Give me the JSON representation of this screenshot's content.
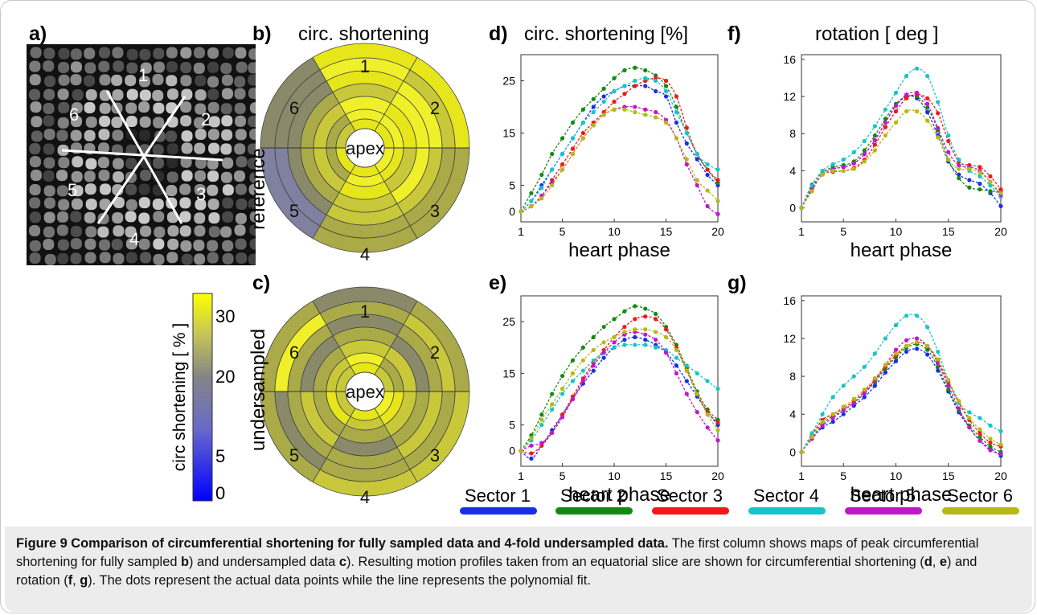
{
  "figure": {
    "panels": {
      "a": "a)",
      "b": "b)",
      "c": "c)",
      "d": "d)",
      "e": "e)",
      "f": "f)",
      "g": "g)"
    },
    "mri": {
      "sector_labels": [
        "1",
        "2",
        "3",
        "4",
        "5",
        "6"
      ]
    },
    "bullseye": {
      "title": "circ. shortening",
      "center_label": "apex",
      "sector_labels": [
        "1",
        "2",
        "3",
        "4",
        "5",
        "6"
      ],
      "reference_label": "reference",
      "undersampled_label": "undersampled"
    },
    "colorbar": {
      "label": "circ shortening [ % ]",
      "ticks": [
        "0",
        "5",
        "20",
        "30"
      ],
      "colors": {
        "low": "#0000ff",
        "mid": "#808080",
        "high": "#ffff00"
      }
    },
    "legend": {
      "entries": [
        {
          "name": "Sector 1",
          "color": "#1a2ee6"
        },
        {
          "name": "Sector 2",
          "color": "#128a12"
        },
        {
          "name": "Sector 3",
          "color": "#f01818"
        },
        {
          "name": "Sector 4",
          "color": "#18c4c8"
        },
        {
          "name": "Sector 5",
          "color": "#c018c8"
        },
        {
          "name": "Sector 6",
          "color": "#b8b814"
        }
      ]
    },
    "caption": {
      "bold": "Figure 9 Comparison of circumferential shortening for fully sampled data and 4-fold undersampled data.",
      "text_1": " The first column shows maps of peak circumferential shortening for fully sampled ",
      "b": "b",
      "text_2": ") and undersampled data ",
      "c": "c",
      "text_3": "). Resulting motion profiles taken from an equatorial slice are shown for circumferential shortening (",
      "d": "d",
      "comma_1": ", ",
      "e": "e",
      "text_4": ") and rotation (",
      "f": "f",
      "comma_2": ", ",
      "g": "g",
      "text_5": "). The dots represent the actual data points while the line represents the polynomial fit."
    }
  },
  "chart_data": [
    {
      "id": "d",
      "type": "line",
      "title": "circ. shortening [%]",
      "xlabel": "heart phase",
      "ylabel": "",
      "xlim": [
        1,
        20
      ],
      "ylim": [
        -2,
        30
      ],
      "xticks": [
        1,
        5,
        10,
        15,
        20
      ],
      "yticks": [
        0,
        5,
        15,
        25
      ],
      "x": [
        1,
        2,
        3,
        4,
        5,
        6,
        7,
        8,
        9,
        10,
        11,
        12,
        13,
        14,
        15,
        16,
        17,
        18,
        19,
        20
      ],
      "series": [
        {
          "name": "Sector 1",
          "values": [
            0,
            2,
            5,
            8,
            11,
            14,
            17,
            20,
            22,
            23,
            24,
            24,
            24,
            23,
            22,
            17,
            13,
            10,
            7,
            5
          ]
        },
        {
          "name": "Sector 2",
          "values": [
            0,
            3.5,
            7,
            11,
            14,
            17,
            19.5,
            21.5,
            23.5,
            25.5,
            27,
            27.5,
            27,
            26,
            24,
            20,
            15,
            11,
            8,
            5.5
          ]
        },
        {
          "name": "Sector 3",
          "values": [
            0,
            1,
            3,
            6,
            9,
            12,
            15,
            17,
            19,
            21,
            22.5,
            24,
            25,
            25.5,
            25,
            22,
            16,
            11,
            8,
            6
          ]
        },
        {
          "name": "Sector 4",
          "values": [
            0,
            2,
            4.5,
            8,
            11,
            14,
            17,
            19,
            21,
            23,
            24,
            25,
            25.5,
            25,
            23,
            19,
            15,
            11,
            9,
            8
          ]
        },
        {
          "name": "Sector 5",
          "values": [
            0,
            1,
            3,
            5.5,
            8,
            11,
            14,
            16.5,
            18.5,
            19.5,
            20,
            20,
            19.5,
            19,
            17.5,
            14,
            9,
            5,
            1,
            -0.5
          ]
        },
        {
          "name": "Sector 6",
          "values": [
            0,
            1,
            2.5,
            5,
            8,
            11,
            14,
            16.5,
            18.5,
            19.5,
            19.5,
            19,
            18.5,
            18,
            17,
            14,
            10,
            6,
            4,
            2
          ]
        }
      ]
    },
    {
      "id": "e",
      "type": "line",
      "title": "",
      "xlabel": "heart phase",
      "ylabel": "",
      "xlim": [
        1,
        20
      ],
      "ylim": [
        -3,
        30
      ],
      "xticks": [
        1,
        5,
        10,
        15,
        20
      ],
      "yticks": [
        0,
        5,
        15,
        25
      ],
      "x": [
        1,
        2,
        3,
        4,
        5,
        6,
        7,
        8,
        9,
        10,
        11,
        12,
        13,
        14,
        15,
        16,
        17,
        18,
        19,
        20
      ],
      "series": [
        {
          "name": "Sector 1",
          "values": [
            0,
            -1.5,
            1,
            4,
            7,
            10,
            13,
            15.5,
            18,
            20,
            21.5,
            22,
            21.5,
            20.5,
            19,
            16.5,
            13.5,
            10.5,
            7.5,
            5
          ]
        },
        {
          "name": "Sector 2",
          "values": [
            0,
            3,
            7,
            11,
            14.5,
            17.5,
            20,
            22,
            24,
            25.5,
            27,
            28,
            27.5,
            26.5,
            24,
            20.5,
            16,
            11.5,
            8,
            6
          ]
        },
        {
          "name": "Sector 3",
          "values": [
            0,
            -0.5,
            1,
            3.5,
            7,
            10.5,
            14,
            17,
            19.5,
            22,
            24,
            25.5,
            26,
            25.5,
            23.5,
            20,
            15.5,
            11,
            7.5,
            5.5
          ]
        },
        {
          "name": "Sector 4",
          "values": [
            0,
            2,
            5,
            8,
            11,
            13.5,
            15.5,
            17.5,
            19,
            20,
            20.5,
            20.5,
            20.5,
            20,
            19.5,
            18,
            16.5,
            15,
            13.5,
            12
          ]
        },
        {
          "name": "Sector 5",
          "values": [
            0,
            1,
            1.5,
            3.5,
            6.5,
            10,
            13.5,
            16.5,
            19,
            21,
            22.5,
            23,
            22.5,
            21.5,
            19,
            15,
            11,
            7.5,
            4.5,
            2
          ]
        },
        {
          "name": "Sector 6",
          "values": [
            0,
            2.5,
            6,
            9,
            12,
            15,
            17.5,
            19.5,
            21,
            22,
            23,
            23.5,
            23.5,
            23,
            22,
            19.5,
            15.5,
            11,
            7,
            4
          ]
        }
      ]
    },
    {
      "id": "f",
      "type": "line",
      "title": "rotation [ deg ]",
      "xlabel": "heart phase",
      "ylabel": "",
      "xlim": [
        1,
        20
      ],
      "ylim": [
        -1.5,
        16.5
      ],
      "xticks": [
        1,
        5,
        10,
        15,
        20
      ],
      "yticks": [
        0,
        4,
        8,
        12,
        16
      ],
      "x": [
        1,
        2,
        3,
        4,
        5,
        6,
        7,
        8,
        9,
        10,
        11,
        12,
        13,
        14,
        15,
        16,
        17,
        18,
        19,
        20
      ],
      "series": [
        {
          "name": "Sector 1",
          "values": [
            0,
            2.2,
            3.6,
            4.2,
            4.4,
            4.8,
            5.8,
            7.3,
            9.2,
            11,
            12,
            11.8,
            10.3,
            7.8,
            5,
            3.6,
            3,
            2.6,
            1.6,
            0.2
          ]
        },
        {
          "name": "Sector 2",
          "values": [
            0,
            2.5,
            3.8,
            4.4,
            4.6,
            5,
            6.2,
            7.8,
            9.6,
            11.2,
            12,
            12,
            10.8,
            8.4,
            5.2,
            3.2,
            2.2,
            2,
            1.8,
            1.8
          ]
        },
        {
          "name": "Sector 3",
          "values": [
            0,
            2,
            3.6,
            3.9,
            4,
            4.3,
            5.2,
            6.8,
            8.7,
            10.4,
            11.8,
            12.2,
            11.8,
            10.2,
            7.2,
            5,
            4.6,
            4.4,
            3.4,
            2
          ]
        },
        {
          "name": "Sector 4",
          "values": [
            0,
            2.4,
            4,
            4.7,
            5.2,
            6,
            7.2,
            8.8,
            10.6,
            12.4,
            14.2,
            15,
            14.2,
            11.4,
            7.8,
            5.2,
            4,
            3.4,
            2.4,
            1.2
          ]
        },
        {
          "name": "Sector 5",
          "values": [
            0,
            2,
            3.6,
            4.2,
            4.4,
            4.8,
            5.8,
            7.3,
            9.2,
            11,
            12.2,
            12.4,
            11.2,
            8.6,
            6,
            4.6,
            4.4,
            4,
            2.8,
            1.4
          ]
        },
        {
          "name": "Sector 6",
          "values": [
            0,
            1.8,
            3.6,
            4,
            4,
            4.2,
            5,
            6.2,
            7.8,
            9.2,
            10.4,
            10.4,
            9.4,
            7.6,
            5.2,
            4.2,
            4.2,
            3.8,
            2.8,
            1.6
          ]
        }
      ]
    },
    {
      "id": "g",
      "type": "line",
      "title": "",
      "xlabel": "heart phase",
      "ylabel": "",
      "xlim": [
        1,
        20
      ],
      "ylim": [
        -1.5,
        16.5
      ],
      "xticks": [
        1,
        5,
        10,
        15,
        20
      ],
      "yticks": [
        0,
        4,
        8,
        12,
        16
      ],
      "x": [
        1,
        2,
        3,
        4,
        5,
        6,
        7,
        8,
        9,
        10,
        11,
        12,
        13,
        14,
        15,
        16,
        17,
        18,
        19,
        20
      ],
      "series": [
        {
          "name": "Sector 1",
          "values": [
            0,
            1.4,
            2.6,
            3.2,
            4,
            4.9,
            5.8,
            7,
            8.4,
            9.6,
            10.6,
            10.9,
            10.3,
            8.6,
            6.4,
            4.2,
            2.6,
            1.2,
            0.4,
            -0.4
          ]
        },
        {
          "name": "Sector 2",
          "values": [
            0,
            1.6,
            3,
            3.8,
            4.4,
            5.2,
            6.2,
            7.4,
            8.8,
            10,
            11,
            11.4,
            10.8,
            9,
            6.6,
            4.4,
            2.8,
            1.6,
            0.6,
            0
          ]
        },
        {
          "name": "Sector 3",
          "values": [
            0,
            1.8,
            3.4,
            4,
            4.6,
            5.4,
            6.4,
            7.6,
            9,
            10.2,
            11.2,
            11.6,
            11.2,
            9.6,
            7.4,
            5.2,
            3.4,
            2,
            1,
            0.6
          ]
        },
        {
          "name": "Sector 4",
          "values": [
            0,
            2,
            4,
            5.8,
            7,
            8,
            9,
            10.4,
            12,
            13.4,
            14.4,
            14.4,
            13.2,
            10.6,
            7.6,
            5.2,
            4.2,
            3.6,
            2.8,
            2.2
          ]
        },
        {
          "name": "Sector 5",
          "values": [
            0,
            1.4,
            2.8,
            3.6,
            4.4,
            5.2,
            6.2,
            7.6,
            9.2,
            10.8,
            11.8,
            12,
            11.2,
            9.4,
            7,
            4.6,
            2.6,
            1.2,
            0.2,
            -0.2
          ]
        },
        {
          "name": "Sector 6",
          "values": [
            0,
            1.6,
            3.2,
            4,
            4.8,
            5.6,
            6.6,
            7.8,
            9.2,
            10.4,
            11.2,
            11.6,
            11.2,
            9.8,
            7.6,
            5.4,
            3.6,
            2.4,
            1.4,
            0.8
          ]
        }
      ]
    }
  ]
}
